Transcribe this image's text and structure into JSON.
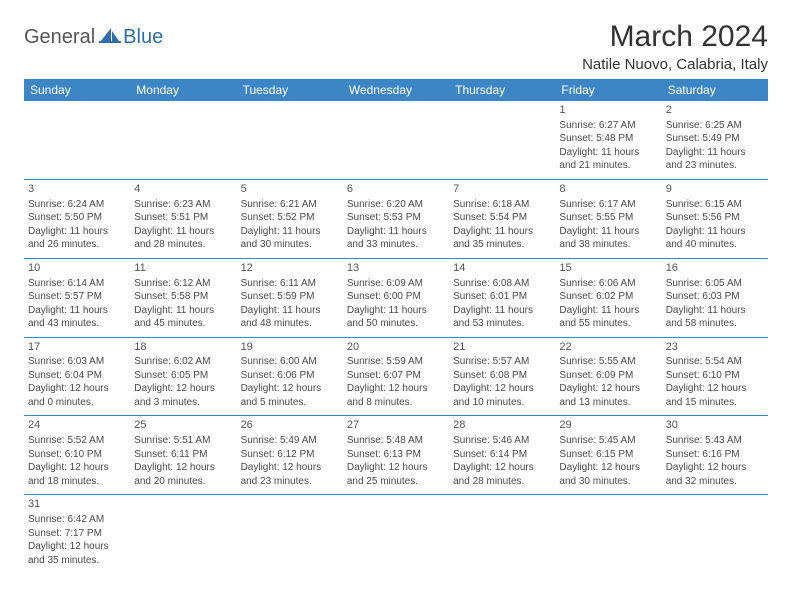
{
  "logo": {
    "general": "General",
    "blue": "Blue"
  },
  "title": "March 2024",
  "location": "Natile Nuovo, Calabria, Italy",
  "header_bg": "#3d86c6",
  "header_fg": "#ffffff",
  "border_color": "#3d86c6",
  "text_color": "#4a4a4a",
  "daynames": [
    "Sunday",
    "Monday",
    "Tuesday",
    "Wednesday",
    "Thursday",
    "Friday",
    "Saturday"
  ],
  "weeks": [
    [
      null,
      null,
      null,
      null,
      null,
      {
        "n": "1",
        "sr": "Sunrise: 6:27 AM",
        "ss": "Sunset: 5:48 PM",
        "dl": "Daylight: 11 hours and 21 minutes."
      },
      {
        "n": "2",
        "sr": "Sunrise: 6:25 AM",
        "ss": "Sunset: 5:49 PM",
        "dl": "Daylight: 11 hours and 23 minutes."
      }
    ],
    [
      {
        "n": "3",
        "sr": "Sunrise: 6:24 AM",
        "ss": "Sunset: 5:50 PM",
        "dl": "Daylight: 11 hours and 26 minutes."
      },
      {
        "n": "4",
        "sr": "Sunrise: 6:23 AM",
        "ss": "Sunset: 5:51 PM",
        "dl": "Daylight: 11 hours and 28 minutes."
      },
      {
        "n": "5",
        "sr": "Sunrise: 6:21 AM",
        "ss": "Sunset: 5:52 PM",
        "dl": "Daylight: 11 hours and 30 minutes."
      },
      {
        "n": "6",
        "sr": "Sunrise: 6:20 AM",
        "ss": "Sunset: 5:53 PM",
        "dl": "Daylight: 11 hours and 33 minutes."
      },
      {
        "n": "7",
        "sr": "Sunrise: 6:18 AM",
        "ss": "Sunset: 5:54 PM",
        "dl": "Daylight: 11 hours and 35 minutes."
      },
      {
        "n": "8",
        "sr": "Sunrise: 6:17 AM",
        "ss": "Sunset: 5:55 PM",
        "dl": "Daylight: 11 hours and 38 minutes."
      },
      {
        "n": "9",
        "sr": "Sunrise: 6:15 AM",
        "ss": "Sunset: 5:56 PM",
        "dl": "Daylight: 11 hours and 40 minutes."
      }
    ],
    [
      {
        "n": "10",
        "sr": "Sunrise: 6:14 AM",
        "ss": "Sunset: 5:57 PM",
        "dl": "Daylight: 11 hours and 43 minutes."
      },
      {
        "n": "11",
        "sr": "Sunrise: 6:12 AM",
        "ss": "Sunset: 5:58 PM",
        "dl": "Daylight: 11 hours and 45 minutes."
      },
      {
        "n": "12",
        "sr": "Sunrise: 6:11 AM",
        "ss": "Sunset: 5:59 PM",
        "dl": "Daylight: 11 hours and 48 minutes."
      },
      {
        "n": "13",
        "sr": "Sunrise: 6:09 AM",
        "ss": "Sunset: 6:00 PM",
        "dl": "Daylight: 11 hours and 50 minutes."
      },
      {
        "n": "14",
        "sr": "Sunrise: 6:08 AM",
        "ss": "Sunset: 6:01 PM",
        "dl": "Daylight: 11 hours and 53 minutes."
      },
      {
        "n": "15",
        "sr": "Sunrise: 6:06 AM",
        "ss": "Sunset: 6:02 PM",
        "dl": "Daylight: 11 hours and 55 minutes."
      },
      {
        "n": "16",
        "sr": "Sunrise: 6:05 AM",
        "ss": "Sunset: 6:03 PM",
        "dl": "Daylight: 11 hours and 58 minutes."
      }
    ],
    [
      {
        "n": "17",
        "sr": "Sunrise: 6:03 AM",
        "ss": "Sunset: 6:04 PM",
        "dl": "Daylight: 12 hours and 0 minutes."
      },
      {
        "n": "18",
        "sr": "Sunrise: 6:02 AM",
        "ss": "Sunset: 6:05 PM",
        "dl": "Daylight: 12 hours and 3 minutes."
      },
      {
        "n": "19",
        "sr": "Sunrise: 6:00 AM",
        "ss": "Sunset: 6:06 PM",
        "dl": "Daylight: 12 hours and 5 minutes."
      },
      {
        "n": "20",
        "sr": "Sunrise: 5:59 AM",
        "ss": "Sunset: 6:07 PM",
        "dl": "Daylight: 12 hours and 8 minutes."
      },
      {
        "n": "21",
        "sr": "Sunrise: 5:57 AM",
        "ss": "Sunset: 6:08 PM",
        "dl": "Daylight: 12 hours and 10 minutes."
      },
      {
        "n": "22",
        "sr": "Sunrise: 5:55 AM",
        "ss": "Sunset: 6:09 PM",
        "dl": "Daylight: 12 hours and 13 minutes."
      },
      {
        "n": "23",
        "sr": "Sunrise: 5:54 AM",
        "ss": "Sunset: 6:10 PM",
        "dl": "Daylight: 12 hours and 15 minutes."
      }
    ],
    [
      {
        "n": "24",
        "sr": "Sunrise: 5:52 AM",
        "ss": "Sunset: 6:10 PM",
        "dl": "Daylight: 12 hours and 18 minutes."
      },
      {
        "n": "25",
        "sr": "Sunrise: 5:51 AM",
        "ss": "Sunset: 6:11 PM",
        "dl": "Daylight: 12 hours and 20 minutes."
      },
      {
        "n": "26",
        "sr": "Sunrise: 5:49 AM",
        "ss": "Sunset: 6:12 PM",
        "dl": "Daylight: 12 hours and 23 minutes."
      },
      {
        "n": "27",
        "sr": "Sunrise: 5:48 AM",
        "ss": "Sunset: 6:13 PM",
        "dl": "Daylight: 12 hours and 25 minutes."
      },
      {
        "n": "28",
        "sr": "Sunrise: 5:46 AM",
        "ss": "Sunset: 6:14 PM",
        "dl": "Daylight: 12 hours and 28 minutes."
      },
      {
        "n": "29",
        "sr": "Sunrise: 5:45 AM",
        "ss": "Sunset: 6:15 PM",
        "dl": "Daylight: 12 hours and 30 minutes."
      },
      {
        "n": "30",
        "sr": "Sunrise: 5:43 AM",
        "ss": "Sunset: 6:16 PM",
        "dl": "Daylight: 12 hours and 32 minutes."
      }
    ],
    [
      {
        "n": "31",
        "sr": "Sunrise: 6:42 AM",
        "ss": "Sunset: 7:17 PM",
        "dl": "Daylight: 12 hours and 35 minutes."
      },
      null,
      null,
      null,
      null,
      null,
      null
    ]
  ]
}
